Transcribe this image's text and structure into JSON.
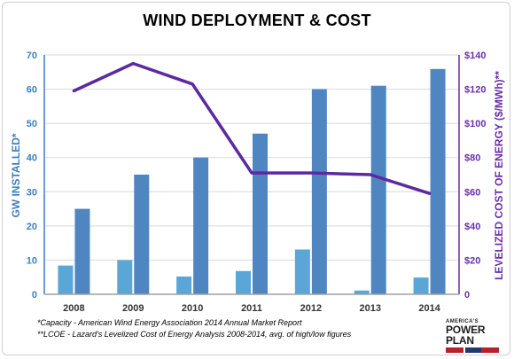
{
  "chart_data": {
    "type": "bar+line",
    "title": "WIND DEPLOYMENT & COST",
    "categories": [
      "2008",
      "2009",
      "2010",
      "2011",
      "2012",
      "2013",
      "2014"
    ],
    "series": [
      {
        "values": [
          8.4,
          10,
          5.2,
          6.8,
          13.1,
          1.1,
          4.9
        ],
        "axis": "left",
        "kind": "bar",
        "color": "#5aa6d6"
      },
      {
        "values": [
          25,
          35,
          40,
          47,
          60,
          61,
          65.9
        ],
        "axis": "left",
        "kind": "bar",
        "color": "#4f86c2"
      },
      {
        "values": [
          119,
          135,
          123,
          71,
          71,
          70,
          59
        ],
        "axis": "right",
        "kind": "line",
        "color": "#5b2a9e"
      }
    ],
    "ylabel": "GW INSTALLED*",
    "ylim": [
      0,
      70
    ],
    "yticks": [
      "0",
      "10",
      "20",
      "30",
      "40",
      "50",
      "60",
      "70"
    ],
    "y2label": "LEVELIZED COST OF ENERGY ($/MWh)**",
    "y2lim": [
      0,
      140
    ],
    "y2ticks": [
      "0",
      "$20",
      "$40",
      "$60",
      "$80",
      "$100",
      "$120",
      "$140"
    ],
    "grid": true,
    "legend": "none"
  },
  "footnotes": [
    "*Capacity - American Wind Energy Association 2014 Annual Market Report",
    "**LCOE - Lazard's Levelized Cost of Energy Analysis 2008-2014, avg. of high/low figures"
  ],
  "logo": {
    "top_text": "AMERICA'S",
    "main_text": "POWER PLAN"
  },
  "colors": {
    "left_axis": "#3d7fc0",
    "right_axis": "#6a2fa8",
    "grid": "#d9d9d9"
  }
}
